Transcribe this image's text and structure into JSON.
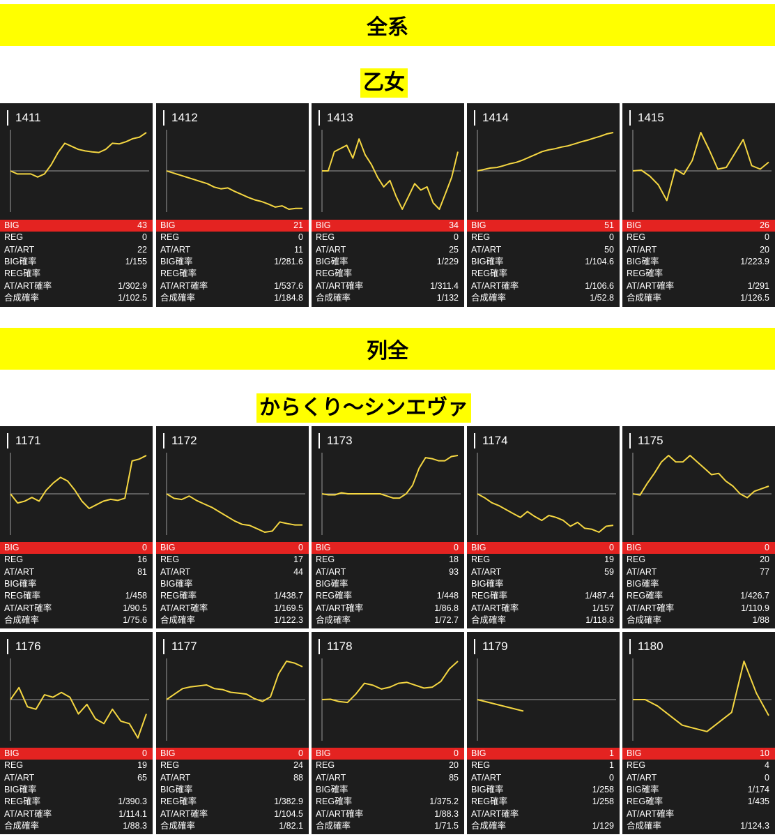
{
  "banners": {
    "all": "全系",
    "row_all": "列全"
  },
  "machines": {
    "otome": "乙女",
    "karakuri": "からくり～シンエヴァ"
  },
  "labels": {
    "big": "BIG",
    "reg": "REG",
    "at": "AT/ART",
    "big_rate": "BIG確率",
    "reg_rate": "REG確率",
    "at_rate": "AT/ART確率",
    "total_rate": "合成確率"
  },
  "colors": {
    "card_bg": "#1d1d1d",
    "line": "#f5d742",
    "big_row": "#e42321",
    "banner": "#ffff00"
  },
  "section1": [
    {
      "no": "1411",
      "big": "43",
      "reg": "0",
      "at": "22",
      "big_rate": "1/155",
      "reg_rate": "",
      "at_rate": "1/302.9",
      "total_rate": "1/102.5",
      "trend": [
        0,
        -0.1,
        -0.1,
        -0.1,
        -0.2,
        -0.1,
        0.2,
        0.6,
        0.9,
        0.8,
        0.7,
        0.65,
        0.62,
        0.6,
        0.7,
        0.9,
        0.88,
        0.95,
        1.05,
        1.1,
        1.25
      ]
    },
    {
      "no": "1412",
      "big": "21",
      "reg": "0",
      "at": "11",
      "big_rate": "1/281.6",
      "reg_rate": "",
      "at_rate": "1/537.6",
      "total_rate": "1/184.8",
      "trend": [
        0,
        -0.05,
        -0.1,
        -0.15,
        -0.2,
        -0.25,
        -0.3,
        -0.38,
        -0.42,
        -0.4,
        -0.48,
        -0.55,
        -0.62,
        -0.68,
        -0.72,
        -0.78,
        -0.85,
        -0.82,
        -0.9,
        -0.88,
        -0.88
      ]
    },
    {
      "no": "1413",
      "big": "34",
      "reg": "0",
      "at": "25",
      "big_rate": "1/229",
      "reg_rate": "",
      "at_rate": "1/311.4",
      "total_rate": "1/132",
      "trend": [
        0,
        0,
        0.3,
        0.35,
        0.4,
        0.2,
        0.5,
        0.25,
        0.1,
        -0.1,
        -0.25,
        -0.15,
        -0.4,
        -0.6,
        -0.4,
        -0.2,
        -0.3,
        -0.25,
        -0.5,
        -0.6,
        -0.35,
        -0.1,
        0.3
      ]
    },
    {
      "no": "1414",
      "big": "51",
      "reg": "0",
      "at": "50",
      "big_rate": "1/104.6",
      "reg_rate": "",
      "at_rate": "1/106.6",
      "total_rate": "1/52.8",
      "trend": [
        0,
        0.05,
        0.1,
        0.12,
        0.18,
        0.25,
        0.3,
        0.38,
        0.48,
        0.58,
        0.68,
        0.74,
        0.78,
        0.84,
        0.88,
        0.95,
        1.02,
        1.08,
        1.15,
        1.22,
        1.3,
        1.35
      ]
    },
    {
      "no": "1415",
      "big": "26",
      "reg": "0",
      "at": "20",
      "big_rate": "1/223.9",
      "reg_rate": "",
      "at_rate": "1/291",
      "total_rate": "1/126.5",
      "trend": [
        0,
        0.02,
        -0.15,
        -0.4,
        -0.85,
        0.05,
        -0.1,
        0.3,
        1.1,
        0.6,
        0.05,
        0.1,
        0.5,
        0.9,
        0.15,
        0.05,
        0.25
      ]
    }
  ],
  "section2": [
    {
      "no": "1171",
      "big": "0",
      "reg": "16",
      "at": "81",
      "big_rate": "",
      "reg_rate": "1/458",
      "at_rate": "1/90.5",
      "total_rate": "1/75.6",
      "trend": [
        0,
        -0.25,
        -0.2,
        -0.1,
        -0.2,
        0.1,
        0.3,
        0.45,
        0.35,
        0.1,
        -0.2,
        -0.4,
        -0.3,
        -0.2,
        -0.15,
        -0.18,
        -0.12,
        0.9,
        0.95,
        1.05
      ]
    },
    {
      "no": "1172",
      "big": "0",
      "reg": "17",
      "at": "44",
      "big_rate": "",
      "reg_rate": "1/438.7",
      "at_rate": "1/169.5",
      "total_rate": "1/122.3",
      "trend": [
        0,
        -0.2,
        -0.25,
        -0.1,
        -0.3,
        -0.45,
        -0.6,
        -0.8,
        -1.0,
        -1.2,
        -1.35,
        -1.4,
        -1.55,
        -1.7,
        -1.65,
        -1.25,
        -1.32,
        -1.38,
        -1.38
      ]
    },
    {
      "no": "1173",
      "big": "0",
      "reg": "18",
      "at": "93",
      "big_rate": "",
      "reg_rate": "1/448",
      "at_rate": "1/86.8",
      "total_rate": "1/72.7",
      "trend": [
        0,
        -0.05,
        -0.05,
        0.05,
        0,
        0,
        0,
        0,
        0,
        0,
        -0.1,
        -0.2,
        -0.2,
        0,
        0.4,
        1.2,
        1.7,
        1.65,
        1.55,
        1.55,
        1.75,
        1.8
      ]
    },
    {
      "no": "1174",
      "big": "0",
      "reg": "19",
      "at": "59",
      "big_rate": "",
      "reg_rate": "1/487.4",
      "at_rate": "1/157",
      "total_rate": "1/118.8",
      "trend": [
        0,
        -0.2,
        -0.45,
        -0.6,
        -0.8,
        -1.0,
        -1.2,
        -0.9,
        -1.15,
        -1.35,
        -1.1,
        -1.2,
        -1.35,
        -1.65,
        -1.45,
        -1.75,
        -1.8,
        -1.95,
        -1.65,
        -1.6
      ]
    },
    {
      "no": "1175",
      "big": "0",
      "reg": "20",
      "at": "77",
      "big_rate": "",
      "reg_rate": "1/426.7",
      "at_rate": "1/110.9",
      "total_rate": "1/88",
      "trend": [
        0,
        -0.05,
        0.4,
        0.8,
        1.25,
        1.5,
        1.25,
        1.25,
        1.5,
        1.25,
        1.0,
        0.75,
        0.8,
        0.5,
        0.3,
        0,
        -0.15,
        0.1,
        0.2,
        0.3
      ]
    }
  ],
  "section3": [
    {
      "no": "1176",
      "big": "0",
      "reg": "19",
      "at": "65",
      "big_rate": "",
      "reg_rate": "1/390.3",
      "at_rate": "1/114.1",
      "total_rate": "1/88.3",
      "trend": [
        0,
        0.25,
        -0.15,
        -0.2,
        0.1,
        0.05,
        0.15,
        0.05,
        -0.3,
        -0.1,
        -0.4,
        -0.5,
        -0.2,
        -0.45,
        -0.5,
        -0.8,
        -0.3
      ]
    },
    {
      "no": "1177",
      "big": "0",
      "reg": "24",
      "at": "88",
      "big_rate": "",
      "reg_rate": "1/382.9",
      "at_rate": "1/104.5",
      "total_rate": "1/82.1",
      "trend": [
        0,
        0.3,
        0.6,
        0.7,
        0.75,
        0.8,
        0.6,
        0.55,
        0.4,
        0.35,
        0.3,
        0.05,
        -0.1,
        0.15,
        1.4,
        2.1,
        2.0,
        1.8
      ]
    },
    {
      "no": "1178",
      "big": "0",
      "reg": "20",
      "at": "85",
      "big_rate": "",
      "reg_rate": "1/375.2",
      "at_rate": "1/88.3",
      "total_rate": "1/71.5",
      "trend": [
        0,
        0.02,
        -0.1,
        -0.15,
        0.3,
        0.85,
        0.75,
        0.55,
        0.65,
        0.85,
        0.9,
        0.75,
        0.6,
        0.65,
        0.95,
        1.6,
        2.0
      ]
    },
    {
      "no": "1179",
      "big": "1",
      "reg": "1",
      "at": "0",
      "big_rate": "1/258",
      "reg_rate": "1/258",
      "at_rate": "",
      "total_rate": "1/129",
      "trend": [
        0,
        -0.05,
        -0.1,
        -0.15
      ]
    },
    {
      "no": "1180",
      "big": "10",
      "reg": "4",
      "at": "0",
      "big_rate": "1/174",
      "reg_rate": "1/435",
      "at_rate": "",
      "total_rate": "1/124.3",
      "trend": [
        0,
        0,
        -0.1,
        -0.25,
        -0.4,
        -0.45,
        -0.5,
        -0.35,
        -0.2,
        0.6,
        0.1,
        -0.25
      ]
    }
  ]
}
